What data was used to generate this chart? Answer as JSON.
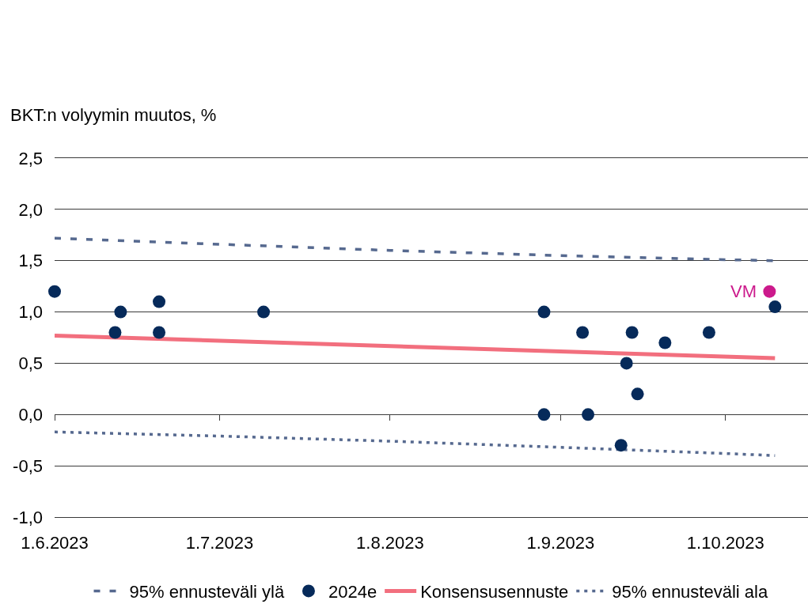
{
  "chart_data": {
    "type": "scatter",
    "ylabel": "BKT:n volyymin muutos, %",
    "annotations": [
      {
        "text": "VM",
        "x": "2023-10-09",
        "y": 1.2
      }
    ],
    "xlim": [
      "2023-06-01",
      "2023-10-16"
    ],
    "xticks": [
      {
        "value": "2023-06-01",
        "label": "1.6.2023"
      },
      {
        "value": "2023-07-01",
        "label": "1.7.2023"
      },
      {
        "value": "2023-08-01",
        "label": "1.8.2023"
      },
      {
        "value": "2023-09-01",
        "label": "1.9.2023"
      },
      {
        "value": "2023-10-01",
        "label": "1.10.2023"
      }
    ],
    "ylim": [
      -1.0,
      2.5
    ],
    "yticks": [
      {
        "value": -1.0,
        "label": "-1,0"
      },
      {
        "value": -0.5,
        "label": "-0,5"
      },
      {
        "value": 0.0,
        "label": "0,0"
      },
      {
        "value": 0.5,
        "label": "0,5"
      },
      {
        "value": 1.0,
        "label": "1,0"
      },
      {
        "value": 1.5,
        "label": "1,5"
      },
      {
        "value": 2.0,
        "label": "2,0"
      },
      {
        "value": 2.5,
        "label": "2,5"
      }
    ],
    "grid": "y",
    "legend": "bottom",
    "series": [
      {
        "name": "95% ennusteväli ylä",
        "type": "line",
        "marker": "none",
        "line_style": "dashed",
        "color": "#56698f",
        "x": [
          "2023-06-01",
          "2023-07-01",
          "2023-08-01",
          "2023-09-01",
          "2023-10-01",
          "2023-10-10"
        ],
        "values": [
          1.72,
          1.66,
          1.6,
          1.55,
          1.51,
          1.5
        ]
      },
      {
        "name": "2024e",
        "marker": "circle",
        "color": "#062a5a",
        "x": [
          "2023-06-01",
          "2023-06-12",
          "2023-06-13",
          "2023-06-20",
          "2023-06-20",
          "2023-07-09",
          "2023-08-29",
          "2023-08-29",
          "2023-09-05",
          "2023-09-06",
          "2023-09-12",
          "2023-09-13",
          "2023-09-14",
          "2023-09-15",
          "2023-09-20",
          "2023-09-28",
          "2023-10-10"
        ],
        "values": [
          1.2,
          0.8,
          1.0,
          1.1,
          0.8,
          1.0,
          1.0,
          0.0,
          0.8,
          0.0,
          -0.3,
          0.5,
          0.8,
          0.2,
          0.7,
          0.8,
          1.05
        ]
      },
      {
        "name": "Konsensusennuste",
        "type": "line",
        "marker": "none",
        "line_style": "solid",
        "color": "#f26f7e",
        "x": [
          "2023-06-01",
          "2023-10-10"
        ],
        "values": [
          0.77,
          0.55
        ]
      },
      {
        "name": "95% ennusteväli ala",
        "type": "line",
        "marker": "none",
        "line_style": "dotted",
        "color": "#56698f",
        "x": [
          "2023-06-01",
          "2023-07-01",
          "2023-08-01",
          "2023-09-01",
          "2023-10-01",
          "2023-10-10"
        ],
        "values": [
          -0.17,
          -0.21,
          -0.26,
          -0.32,
          -0.38,
          -0.4
        ]
      },
      {
        "marker": "circle",
        "color": "#cc1a8c",
        "x": [
          "2023-10-09"
        ],
        "values": [
          1.2
        ]
      }
    ]
  }
}
